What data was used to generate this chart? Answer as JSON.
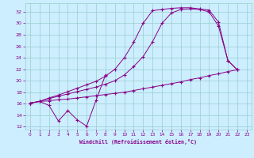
{
  "xlabel": "Windchill (Refroidissement éolien,°C)",
  "bg_color": "#cceeff",
  "grid_color": "#99cccc",
  "line_color": "#880088",
  "xlim": [
    -0.5,
    23.5
  ],
  "ylim": [
    11.5,
    33.5
  ],
  "xticks": [
    0,
    1,
    2,
    3,
    4,
    5,
    6,
    7,
    8,
    9,
    10,
    11,
    12,
    13,
    14,
    15,
    16,
    17,
    18,
    19,
    20,
    21,
    22,
    23
  ],
  "yticks": [
    12,
    14,
    16,
    18,
    20,
    22,
    24,
    26,
    28,
    30,
    32
  ],
  "s1_x": [
    0,
    1,
    2,
    3,
    4,
    5,
    6,
    7,
    8
  ],
  "s1_y": [
    16.1,
    16.4,
    15.7,
    13.0,
    14.8,
    13.2,
    12.1,
    16.6,
    21.0
  ],
  "s2_x": [
    0,
    1,
    2,
    3,
    4,
    5,
    6,
    7,
    8,
    9,
    10,
    11,
    12,
    13,
    14,
    15,
    16,
    17,
    18,
    19,
    20,
    21,
    22
  ],
  "s2_y": [
    16.1,
    16.4,
    17.0,
    17.5,
    18.1,
    18.7,
    19.3,
    19.9,
    20.8,
    22.0,
    24.0,
    26.7,
    30.0,
    32.2,
    32.4,
    32.6,
    32.7,
    32.7,
    32.5,
    32.3,
    30.2,
    23.5,
    21.9
  ],
  "s3_x": [
    0,
    1,
    2,
    3,
    4,
    5,
    6,
    7,
    8,
    9,
    10,
    11,
    12,
    13,
    14,
    15,
    16,
    17,
    18,
    19,
    20,
    21,
    22
  ],
  "s3_y": [
    16.1,
    16.4,
    16.9,
    17.3,
    17.7,
    18.1,
    18.5,
    18.9,
    19.4,
    20.0,
    21.0,
    22.5,
    24.2,
    26.8,
    30.0,
    31.8,
    32.4,
    32.5,
    32.4,
    32.0,
    29.5,
    23.5,
    21.9
  ],
  "s4_x": [
    0,
    1,
    2,
    3,
    4,
    5,
    6,
    7,
    8,
    9,
    10,
    11,
    12,
    13,
    14,
    15,
    16,
    17,
    18,
    19,
    20,
    21,
    22
  ],
  "s4_y": [
    16.1,
    16.4,
    16.5,
    16.7,
    16.8,
    17.0,
    17.2,
    17.4,
    17.6,
    17.8,
    18.0,
    18.3,
    18.6,
    18.9,
    19.2,
    19.5,
    19.8,
    20.2,
    20.5,
    20.9,
    21.2,
    21.6,
    21.9
  ]
}
